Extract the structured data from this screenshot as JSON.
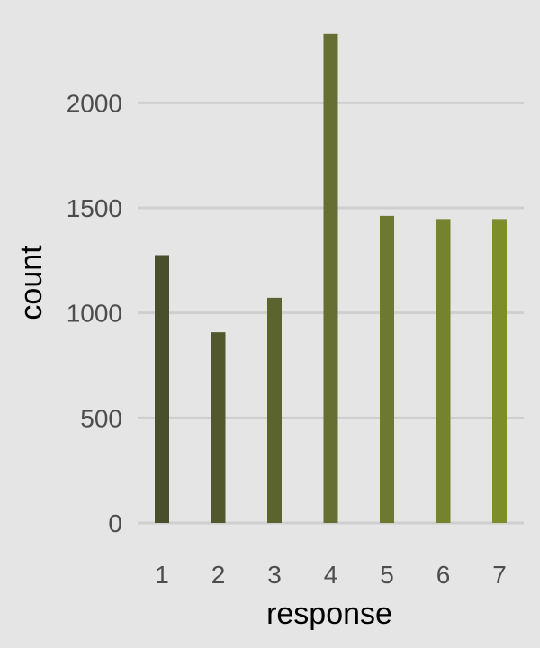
{
  "chart_data": {
    "type": "bar",
    "categories": [
      "1",
      "2",
      "3",
      "4",
      "5",
      "6",
      "7"
    ],
    "values": [
      1275,
      908,
      1072,
      2328,
      1462,
      1447,
      1447
    ],
    "xlabel": "response",
    "ylabel": "count",
    "ylim": [
      0,
      2370
    ],
    "yticks": [
      0,
      500,
      1000,
      1500,
      2000
    ],
    "ytick_labels": [
      "0",
      "500",
      "1000",
      "1500",
      "2000"
    ],
    "grid": true,
    "legend": "none",
    "bar_colors": [
      "#4b4e2c",
      "#53582c",
      "#5b632e",
      "#666e31",
      "#6d7831",
      "#75832f",
      "#7f8c2c"
    ],
    "background_color": "#e5e5e5",
    "grid_color": "#cfcfcf"
  }
}
